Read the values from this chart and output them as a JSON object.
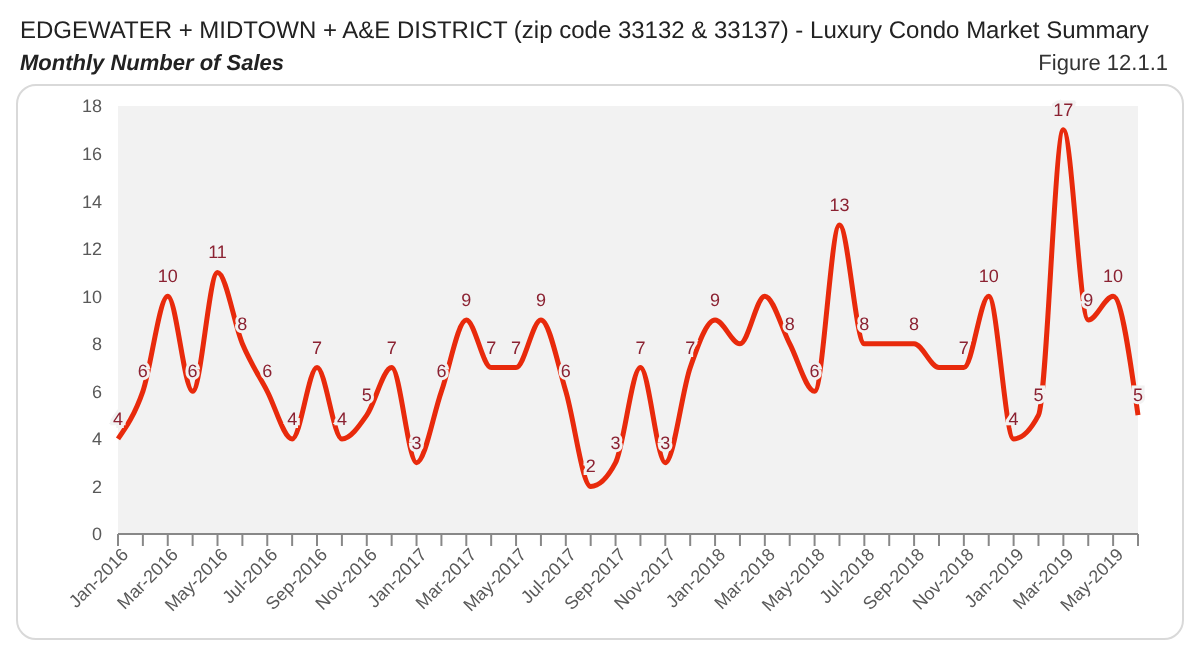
{
  "chart_data": {
    "type": "line",
    "title": "EDGEWATER + MIDTOWN + A&E DISTRICT (zip code 33132 & 33137) - Luxury Condo Market Summary",
    "subtitle": "Monthly Number of Sales",
    "annotations": [
      "Figure 12.1.1"
    ],
    "categories": [
      "Jan-2016",
      null,
      "Mar-2016",
      null,
      "May-2016",
      null,
      "Jul-2016",
      null,
      "Sep-2016",
      null,
      "Nov-2016",
      null,
      "Jan-2017",
      null,
      "Mar-2017",
      null,
      "May-2017",
      null,
      "Jul-2017",
      null,
      "Sep-2017",
      null,
      "Nov-2017",
      null,
      "Jan-2018",
      null,
      "Mar-2018",
      null,
      "May-2018",
      null,
      "Jul-2018",
      null,
      "Sep-2018",
      null,
      "Nov-2018",
      null,
      "Jan-2019",
      null,
      "Mar-2019",
      null,
      "May-2019",
      null
    ],
    "series": [
      {
        "color": "#e82a0c",
        "values": [
          4,
          6,
          10,
          6,
          11,
          8,
          6,
          4,
          7,
          4,
          5,
          7,
          3,
          6,
          9,
          7,
          7,
          9,
          6,
          2,
          3,
          7,
          3,
          7,
          9,
          8,
          10,
          8,
          6,
          13,
          8,
          8,
          8,
          7,
          7,
          10,
          4,
          5,
          17,
          9,
          10,
          5
        ],
        "value_labels": [
          "4",
          "6",
          "10",
          "6",
          "11",
          "8",
          "6",
          "4",
          "7",
          "4",
          "5",
          "7",
          "3",
          "6",
          "9",
          "7",
          "7",
          "9",
          "6",
          "2",
          "3",
          "7",
          "3",
          "7",
          "9",
          null,
          null,
          "8",
          "6",
          "13",
          "8",
          null,
          "8",
          null,
          "7",
          "10",
          "4",
          "5",
          "17",
          "9",
          "10",
          "5"
        ]
      }
    ],
    "ylim": [
      0,
      18
    ],
    "yticks": [
      0,
      2,
      4,
      6,
      8,
      10,
      12,
      14,
      16,
      18
    ],
    "grid": false,
    "marker": "none",
    "line_style": "solid"
  }
}
